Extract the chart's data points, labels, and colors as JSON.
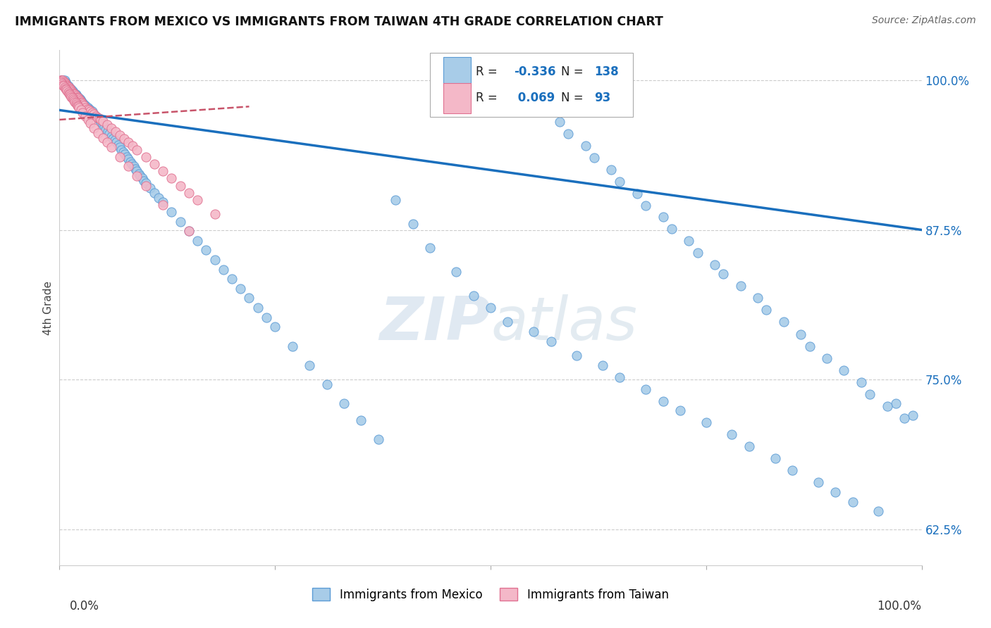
{
  "title": "IMMIGRANTS FROM MEXICO VS IMMIGRANTS FROM TAIWAN 4TH GRADE CORRELATION CHART",
  "source": "Source: ZipAtlas.com",
  "ylabel": "4th Grade",
  "legend_blue_R": "-0.336",
  "legend_blue_N": "138",
  "legend_pink_R": "0.069",
  "legend_pink_N": "93",
  "blue_color": "#a8cce8",
  "blue_edge_color": "#5b9bd5",
  "pink_color": "#f4b8c8",
  "pink_edge_color": "#e07090",
  "trend_blue_color": "#1a6fbd",
  "trend_pink_color": "#c8546a",
  "watermark_zip": "ZIP",
  "watermark_atlas": "atlas",
  "blue_trend_x0": 0.0,
  "blue_trend_x1": 1.0,
  "blue_trend_y0": 0.975,
  "blue_trend_y1": 0.875,
  "pink_trend_x0": 0.0,
  "pink_trend_x1": 0.22,
  "pink_trend_y0": 0.967,
  "pink_trend_y1": 0.978,
  "xlim": [
    0.0,
    1.0
  ],
  "ylim": [
    0.595,
    1.025
  ],
  "yticks": [
    0.625,
    0.75,
    0.875,
    1.0
  ],
  "ytick_labels": [
    "62.5%",
    "75.0%",
    "87.5%",
    "100.0%"
  ],
  "background_color": "#ffffff",
  "grid_color": "#cccccc",
  "blue_scatter_x": [
    0.002,
    0.004,
    0.005,
    0.006,
    0.007,
    0.008,
    0.009,
    0.01,
    0.011,
    0.012,
    0.013,
    0.014,
    0.015,
    0.016,
    0.017,
    0.018,
    0.019,
    0.02,
    0.021,
    0.022,
    0.023,
    0.024,
    0.025,
    0.026,
    0.027,
    0.028,
    0.03,
    0.031,
    0.033,
    0.034,
    0.036,
    0.038,
    0.04,
    0.042,
    0.044,
    0.046,
    0.048,
    0.05,
    0.052,
    0.054,
    0.056,
    0.058,
    0.06,
    0.062,
    0.064,
    0.066,
    0.068,
    0.07,
    0.072,
    0.074,
    0.076,
    0.078,
    0.08,
    0.082,
    0.084,
    0.086,
    0.088,
    0.09,
    0.092,
    0.094,
    0.096,
    0.098,
    0.1,
    0.105,
    0.11,
    0.115,
    0.12,
    0.13,
    0.14,
    0.15,
    0.16,
    0.17,
    0.18,
    0.19,
    0.2,
    0.21,
    0.22,
    0.23,
    0.24,
    0.25,
    0.27,
    0.29,
    0.31,
    0.33,
    0.35,
    0.37,
    0.39,
    0.41,
    0.43,
    0.46,
    0.48,
    0.5,
    0.52,
    0.55,
    0.57,
    0.6,
    0.63,
    0.65,
    0.68,
    0.7,
    0.72,
    0.75,
    0.78,
    0.8,
    0.83,
    0.85,
    0.88,
    0.9,
    0.92,
    0.95,
    0.97,
    0.99,
    0.58,
    0.59,
    0.61,
    0.62,
    0.64,
    0.65,
    0.67,
    0.68,
    0.7,
    0.71,
    0.73,
    0.74,
    0.76,
    0.77,
    0.79,
    0.81,
    0.82,
    0.84,
    0.86,
    0.87,
    0.89,
    0.91,
    0.93,
    0.94,
    0.96,
    0.98
  ],
  "blue_scatter_y": [
    1.0,
    1.0,
    1.0,
    1.0,
    0.998,
    0.997,
    0.996,
    0.995,
    0.994,
    0.993,
    0.993,
    0.992,
    0.991,
    0.99,
    0.989,
    0.989,
    0.988,
    0.987,
    0.986,
    0.985,
    0.985,
    0.984,
    0.983,
    0.982,
    0.981,
    0.98,
    0.979,
    0.978,
    0.977,
    0.976,
    0.975,
    0.974,
    0.972,
    0.97,
    0.969,
    0.967,
    0.965,
    0.963,
    0.961,
    0.959,
    0.957,
    0.955,
    0.953,
    0.951,
    0.95,
    0.948,
    0.946,
    0.944,
    0.942,
    0.94,
    0.938,
    0.936,
    0.934,
    0.932,
    0.93,
    0.928,
    0.926,
    0.924,
    0.922,
    0.92,
    0.918,
    0.916,
    0.914,
    0.91,
    0.906,
    0.902,
    0.898,
    0.89,
    0.882,
    0.874,
    0.866,
    0.858,
    0.85,
    0.842,
    0.834,
    0.826,
    0.818,
    0.81,
    0.802,
    0.794,
    0.778,
    0.762,
    0.746,
    0.73,
    0.716,
    0.7,
    0.9,
    0.88,
    0.86,
    0.84,
    0.82,
    0.81,
    0.798,
    0.79,
    0.782,
    0.77,
    0.762,
    0.752,
    0.742,
    0.732,
    0.724,
    0.714,
    0.704,
    0.694,
    0.684,
    0.674,
    0.664,
    0.656,
    0.648,
    0.64,
    0.73,
    0.72,
    0.965,
    0.955,
    0.945,
    0.935,
    0.925,
    0.915,
    0.905,
    0.895,
    0.886,
    0.876,
    0.866,
    0.856,
    0.846,
    0.838,
    0.828,
    0.818,
    0.808,
    0.798,
    0.788,
    0.778,
    0.768,
    0.758,
    0.748,
    0.738,
    0.728,
    0.718
  ],
  "pink_scatter_x": [
    0.001,
    0.002,
    0.003,
    0.004,
    0.005,
    0.006,
    0.007,
    0.008,
    0.009,
    0.01,
    0.011,
    0.012,
    0.013,
    0.014,
    0.015,
    0.016,
    0.017,
    0.018,
    0.019,
    0.02,
    0.021,
    0.022,
    0.023,
    0.024,
    0.025,
    0.026,
    0.027,
    0.028,
    0.03,
    0.032,
    0.034,
    0.036,
    0.038,
    0.04,
    0.042,
    0.044,
    0.046,
    0.048,
    0.05,
    0.055,
    0.06,
    0.065,
    0.07,
    0.075,
    0.08,
    0.085,
    0.09,
    0.1,
    0.11,
    0.12,
    0.13,
    0.14,
    0.15,
    0.16,
    0.18,
    0.002,
    0.003,
    0.004,
    0.005,
    0.006,
    0.007,
    0.008,
    0.009,
    0.01,
    0.011,
    0.012,
    0.013,
    0.014,
    0.015,
    0.016,
    0.017,
    0.018,
    0.019,
    0.02,
    0.021,
    0.022,
    0.023,
    0.025,
    0.027,
    0.03,
    0.033,
    0.036,
    0.04,
    0.045,
    0.05,
    0.055,
    0.06,
    0.07,
    0.08,
    0.09,
    0.1,
    0.12,
    0.15
  ],
  "pink_scatter_y": [
    1.0,
    1.0,
    1.0,
    1.0,
    0.999,
    0.998,
    0.997,
    0.996,
    0.995,
    0.994,
    0.994,
    0.993,
    0.992,
    0.991,
    0.99,
    0.989,
    0.989,
    0.988,
    0.987,
    0.986,
    0.985,
    0.985,
    0.984,
    0.983,
    0.982,
    0.981,
    0.98,
    0.979,
    0.977,
    0.976,
    0.975,
    0.974,
    0.973,
    0.972,
    0.97,
    0.969,
    0.968,
    0.967,
    0.966,
    0.963,
    0.96,
    0.957,
    0.954,
    0.951,
    0.948,
    0.945,
    0.942,
    0.936,
    0.93,
    0.924,
    0.918,
    0.912,
    0.906,
    0.9,
    0.888,
    0.998,
    0.997,
    0.996,
    0.995,
    0.994,
    0.993,
    0.992,
    0.991,
    0.99,
    0.989,
    0.988,
    0.987,
    0.986,
    0.985,
    0.984,
    0.983,
    0.982,
    0.981,
    0.98,
    0.979,
    0.978,
    0.977,
    0.975,
    0.973,
    0.97,
    0.967,
    0.964,
    0.96,
    0.956,
    0.952,
    0.948,
    0.944,
    0.936,
    0.928,
    0.92,
    0.912,
    0.896,
    0.874
  ]
}
